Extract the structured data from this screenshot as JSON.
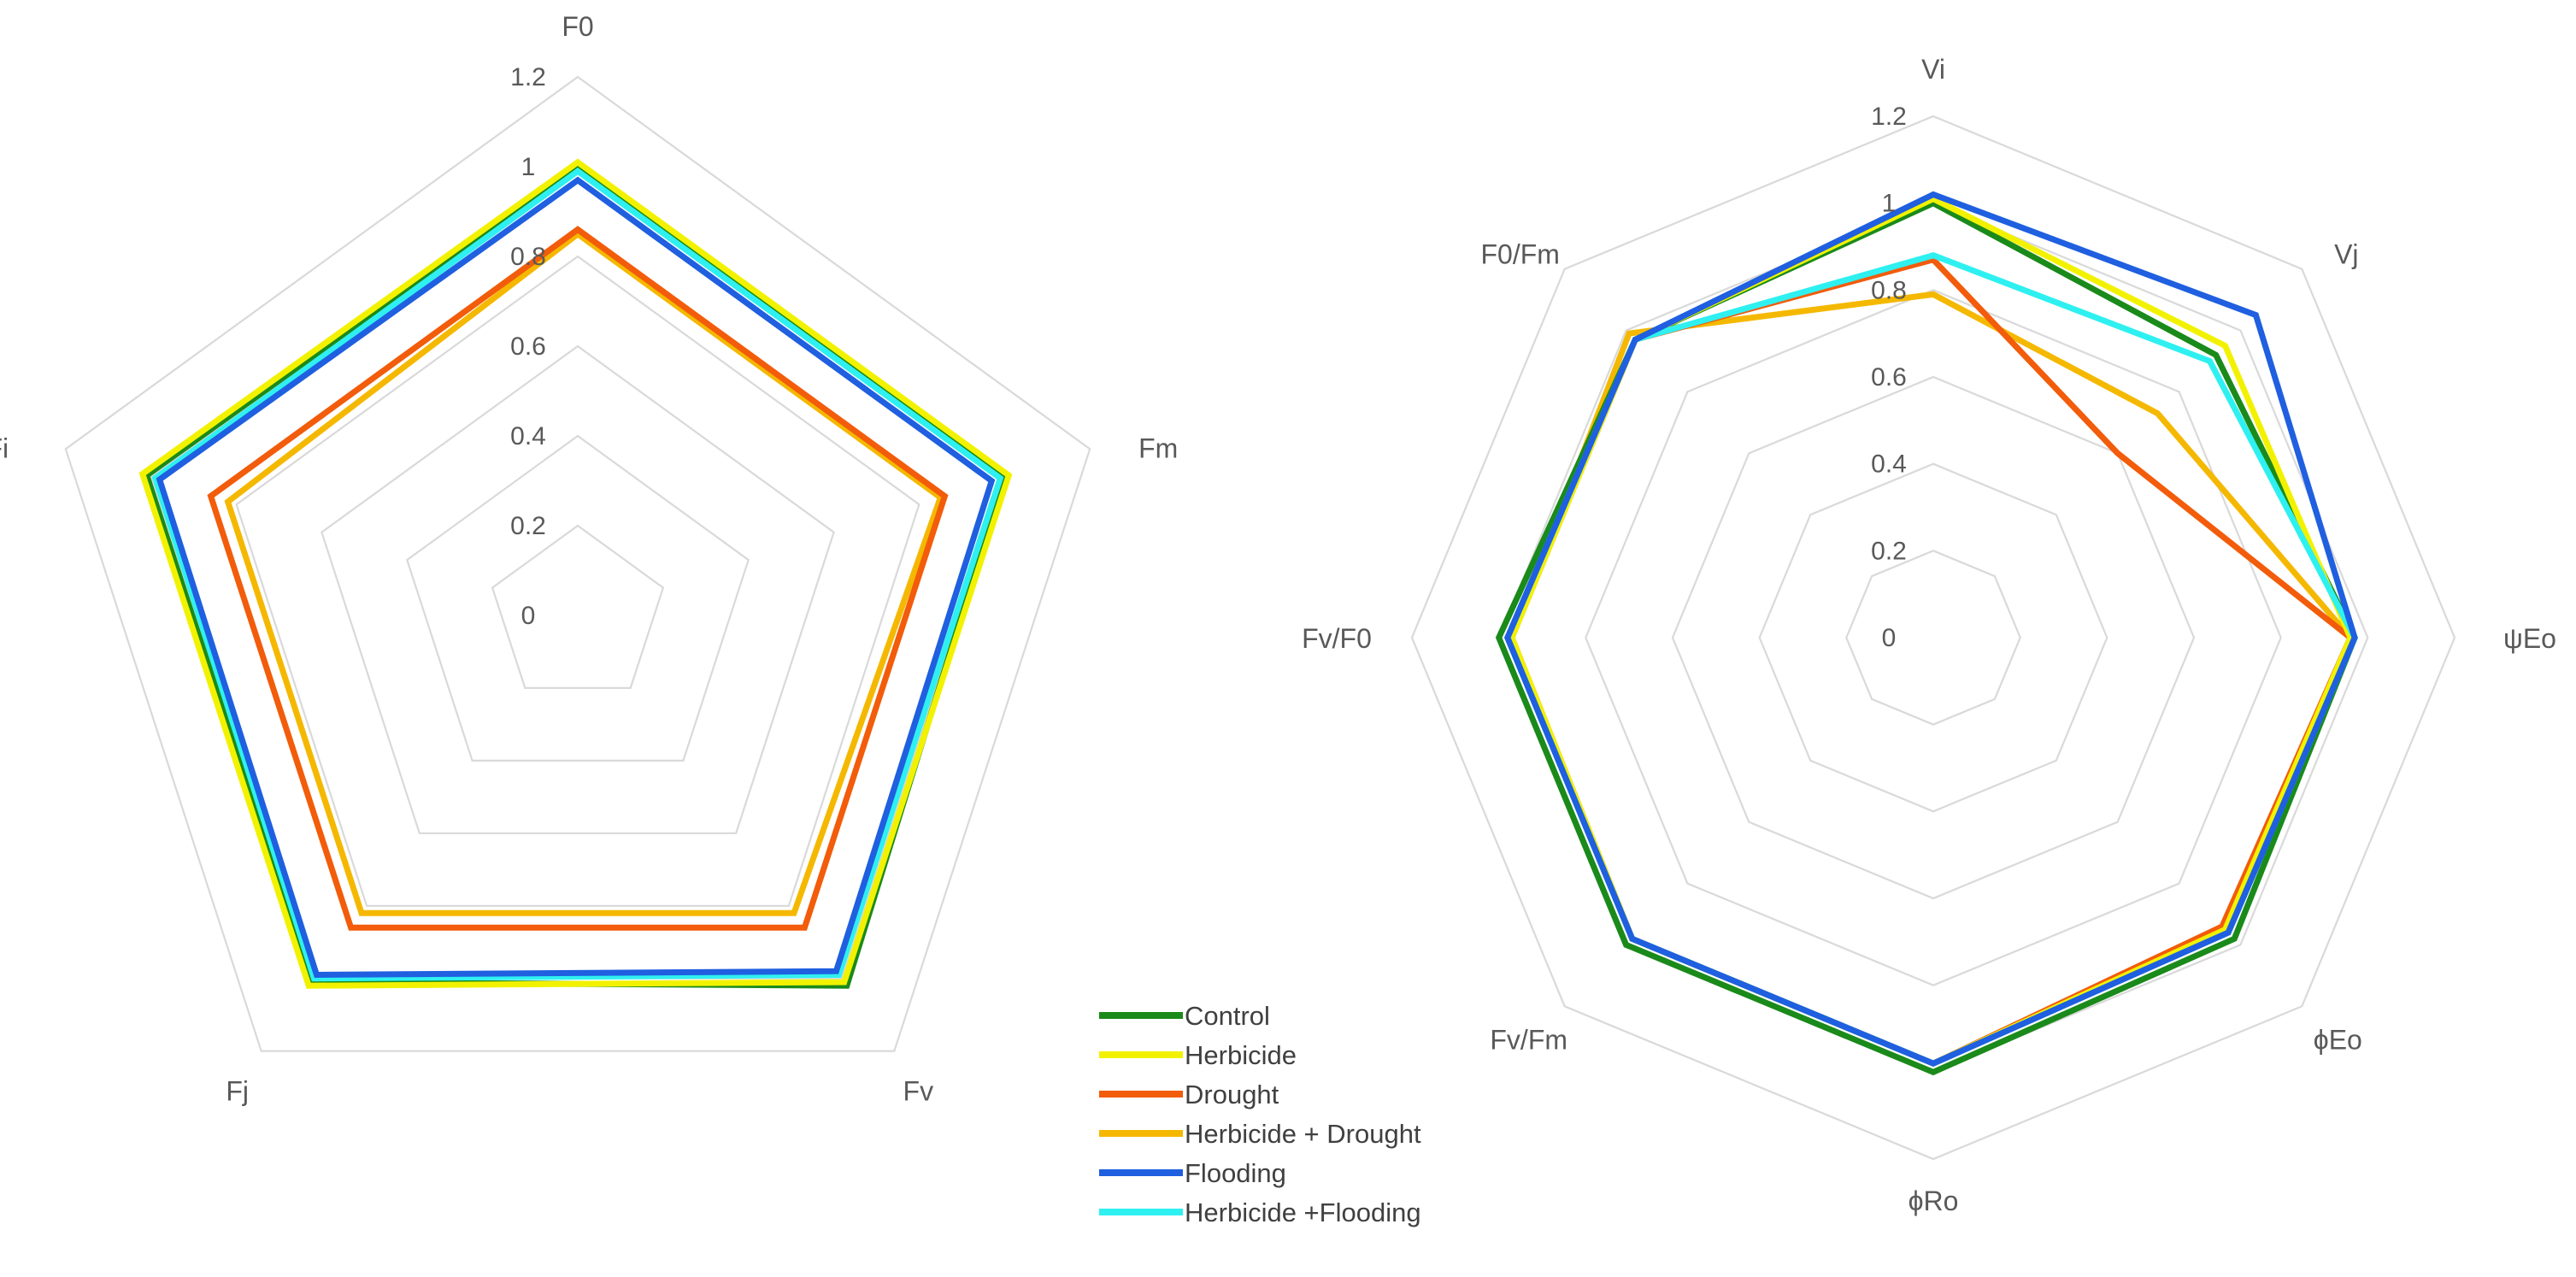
{
  "legend": {
    "entries": [
      {
        "label": "Control",
        "color": "#1a8a1a"
      },
      {
        "label": "Herbicide",
        "color": "#f2f200"
      },
      {
        "label": "Drought",
        "color": "#f25c0a"
      },
      {
        "label": "Herbicide + Drought",
        "color": "#f5b800"
      },
      {
        "label": "Flooding",
        "color": "#1f5fe0"
      },
      {
        "label": "Herbicide +Flooding",
        "color": "#2ff0f0"
      }
    ]
  },
  "chart_data": [
    {
      "type": "radar",
      "title": "",
      "axes": [
        "F0",
        "Fm",
        "Fv",
        "Fj",
        "Fi"
      ],
      "ticks": [
        "0",
        "0.2",
        "0.4",
        "0.6",
        "0.8",
        "1",
        "1.2"
      ],
      "range": [
        0,
        1.2
      ],
      "grid": true,
      "series": [
        {
          "name": "Control",
          "values": [
            1.0,
            1.0,
            1.02,
            1.01,
            1.01
          ]
        },
        {
          "name": "Herbicide",
          "values": [
            1.01,
            1.01,
            1.01,
            1.02,
            1.02
          ]
        },
        {
          "name": "Drought",
          "values": [
            0.86,
            0.86,
            0.86,
            0.86,
            0.86
          ]
        },
        {
          "name": "Herbicide + Drought",
          "values": [
            0.85,
            0.85,
            0.82,
            0.82,
            0.82
          ]
        },
        {
          "name": "Flooding",
          "values": [
            0.97,
            0.97,
            0.98,
            0.99,
            0.98
          ]
        },
        {
          "name": "Herbicide +Flooding",
          "values": [
            0.99,
            0.99,
            0.99,
            1.0,
            0.99
          ]
        }
      ]
    },
    {
      "type": "radar",
      "title": "",
      "axes": [
        "Vi",
        "Vj",
        "ψEo",
        "ϕEo",
        "ϕRo",
        "Fv/Fm",
        "Fv/F0",
        "F0/Fm"
      ],
      "ticks": [
        "0",
        "0.2",
        "0.4",
        "0.6",
        "0.8",
        "1",
        "1.2"
      ],
      "range": [
        0,
        1.2
      ],
      "grid": true,
      "series": [
        {
          "name": "Control",
          "values": [
            1.0,
            0.92,
            0.97,
            0.98,
            1.0,
            1.0,
            1.0,
            0.97
          ]
        },
        {
          "name": "Herbicide",
          "values": [
            1.01,
            0.95,
            0.96,
            0.95,
            0.98,
            0.98,
            0.97,
            0.97
          ]
        },
        {
          "name": "Drought",
          "values": [
            0.87,
            0.6,
            0.96,
            0.94,
            0.98,
            0.98,
            0.97,
            0.97
          ]
        },
        {
          "name": "Herbicide + Drought",
          "values": [
            0.79,
            0.73,
            0.96,
            0.95,
            0.98,
            0.98,
            0.97,
            0.99
          ]
        },
        {
          "name": "Flooding",
          "values": [
            1.02,
            1.05,
            0.97,
            0.96,
            0.98,
            0.98,
            0.98,
            0.97
          ]
        },
        {
          "name": "Herbicide +Flooding",
          "values": [
            0.88,
            0.9,
            0.97,
            0.96,
            0.98,
            0.98,
            0.98,
            0.97
          ]
        }
      ]
    }
  ]
}
